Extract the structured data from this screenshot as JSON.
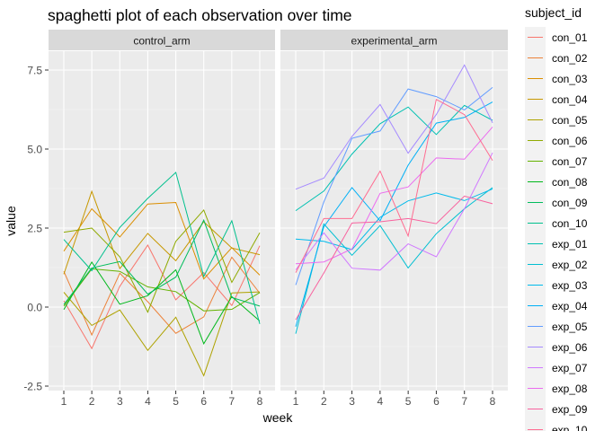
{
  "chart_data": {
    "type": "line",
    "title": "spaghetti plot of each observation over time",
    "xlabel": "week",
    "ylabel": "value",
    "x": [
      1,
      2,
      3,
      4,
      5,
      6,
      7,
      8
    ],
    "x_ticks": [
      "1",
      "2",
      "3",
      "4",
      "5",
      "6",
      "7",
      "8"
    ],
    "y_ticks": [
      -2.5,
      0.0,
      2.5,
      5.0,
      7.5
    ],
    "y_tick_labels": [
      "-2.5",
      "0.0",
      "2.5",
      "5.0",
      "7.5"
    ],
    "ylim": [
      -2.5,
      7.8
    ],
    "grid": true,
    "legend_title": "subject_id",
    "legend_position": "right",
    "panels": [
      {
        "name": "control_arm",
        "series": [
          {
            "name": "con_01",
            "color": "#F8766D",
            "values": [
              0.2,
              -1.31,
              0.66,
              1.96,
              0.23,
              1.09,
              0.05,
              1.94
            ]
          },
          {
            "name": "con_02",
            "color": "#EC8239",
            "values": [
              1.13,
              -0.88,
              1.07,
              0.17,
              -0.83,
              -0.31,
              1.58,
              0.44
            ]
          },
          {
            "name": "con_03",
            "color": "#DB8E00",
            "values": [
              1.77,
              3.11,
              2.22,
              3.26,
              3.31,
              0.89,
              1.88,
              1.01
            ]
          },
          {
            "name": "con_04",
            "color": "#C79800",
            "values": [
              1.04,
              3.66,
              1.22,
              2.33,
              1.47,
              2.7,
              1.87,
              1.66
            ]
          },
          {
            "name": "con_05",
            "color": "#AEA200",
            "values": [
              0.47,
              -0.58,
              -0.09,
              -1.37,
              -0.32,
              -2.17,
              0.45,
              0.48
            ]
          },
          {
            "name": "con_06",
            "color": "#8FAA00",
            "values": [
              2.37,
              2.5,
              1.59,
              -0.16,
              2.08,
              3.07,
              0.78,
              2.35
            ]
          },
          {
            "name": "con_07",
            "color": "#64B200",
            "values": [
              0.03,
              1.21,
              1.13,
              0.64,
              0.49,
              -0.12,
              -0.07,
              0.46
            ]
          },
          {
            "name": "con_08",
            "color": "#00B81B",
            "values": [
              -0.08,
              1.42,
              0.09,
              0.36,
              1.18,
              -1.16,
              0.33,
              -0.44
            ]
          },
          {
            "name": "con_09",
            "color": "#00BD5C",
            "values": [
              0.08,
              1.24,
              1.44,
              0.41,
              0.95,
              2.75,
              0.3,
              0.03
            ]
          },
          {
            "name": "con_10",
            "color": "#00C08D",
            "values": [
              2.14,
              1.15,
              2.52,
              3.44,
              4.26,
              0.97,
              2.73,
              -0.53
            ]
          }
        ]
      },
      {
        "name": "experimental_arm",
        "series": [
          {
            "name": "exp_01",
            "color": "#00C1B2",
            "values": [
              3.05,
              3.67,
              4.84,
              5.8,
              6.33,
              5.46,
              6.38,
              5.91
            ]
          },
          {
            "name": "exp_02",
            "color": "#00BFD2",
            "values": [
              -0.84,
              2.63,
              1.64,
              2.58,
              1.24,
              2.32,
              3.11,
              3.78
            ]
          },
          {
            "name": "exp_03",
            "color": "#00BAEB",
            "values": [
              2.15,
              2.08,
              1.82,
              2.84,
              3.36,
              3.61,
              3.37,
              3.74
            ]
          },
          {
            "name": "exp_04",
            "color": "#00B0F6",
            "values": [
              -0.62,
              2.54,
              3.78,
              2.73,
              4.49,
              5.82,
              6.0,
              6.49
            ]
          },
          {
            "name": "exp_05",
            "color": "#619CFF",
            "values": [
              0.7,
              3.33,
              5.34,
              5.57,
              6.9,
              6.66,
              6.24,
              6.95
            ]
          },
          {
            "name": "exp_06",
            "color": "#A58AFF",
            "values": [
              3.73,
              4.08,
              5.4,
              6.41,
              4.87,
              6.09,
              7.66,
              5.83
            ]
          },
          {
            "name": "exp_07",
            "color": "#D078FF",
            "values": [
              1.18,
              2.35,
              1.23,
              1.17,
              2.0,
              1.59,
              3.11,
              4.88
            ]
          },
          {
            "name": "exp_08",
            "color": "#EB6BEF",
            "values": [
              1.37,
              1.43,
              1.84,
              3.6,
              3.8,
              4.72,
              4.68,
              5.7
            ]
          },
          {
            "name": "exp_09",
            "color": "#F8629E",
            "values": [
              -0.4,
              1.08,
              2.66,
              2.7,
              2.8,
              2.64,
              3.51,
              3.27
            ]
          },
          {
            "name": "exp_10",
            "color": "#FF6C91",
            "values": [
              1.09,
              2.8,
              2.8,
              4.3,
              2.25,
              6.57,
              6.09,
              4.64
            ]
          }
        ]
      }
    ]
  }
}
